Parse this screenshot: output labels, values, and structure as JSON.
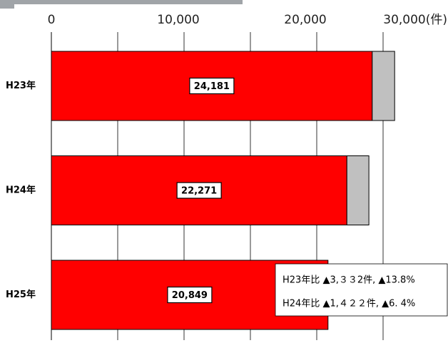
{
  "chart_data": {
    "type": "bar",
    "orientation": "horizontal",
    "categories": [
      "H23年",
      "H24年",
      "H25年"
    ],
    "series": [
      {
        "color": "#ff0000",
        "values": [
          24181,
          22271,
          20849
        ],
        "value_labels": [
          "24,181",
          "22,271",
          "20,849"
        ]
      },
      {
        "color": "#c0c0c0",
        "values": [
          1690,
          1660,
          null
        ]
      }
    ],
    "xlim": [
      0,
      30000
    ],
    "xticks": [
      0,
      {
        "value": 10000,
        "label": "10,000"
      },
      {
        "value": 20000,
        "label": "20,000"
      },
      {
        "value": 30000,
        "label": "30,000(件)"
      }
    ],
    "minor_xticks": [
      5000,
      15000,
      25000
    ],
    "grid": true,
    "annotations": [
      "H23年比 ▲3,３３2件, ▲13.8%",
      "H24年比 ▲1,４２２件,  ▲6. 4%"
    ]
  }
}
